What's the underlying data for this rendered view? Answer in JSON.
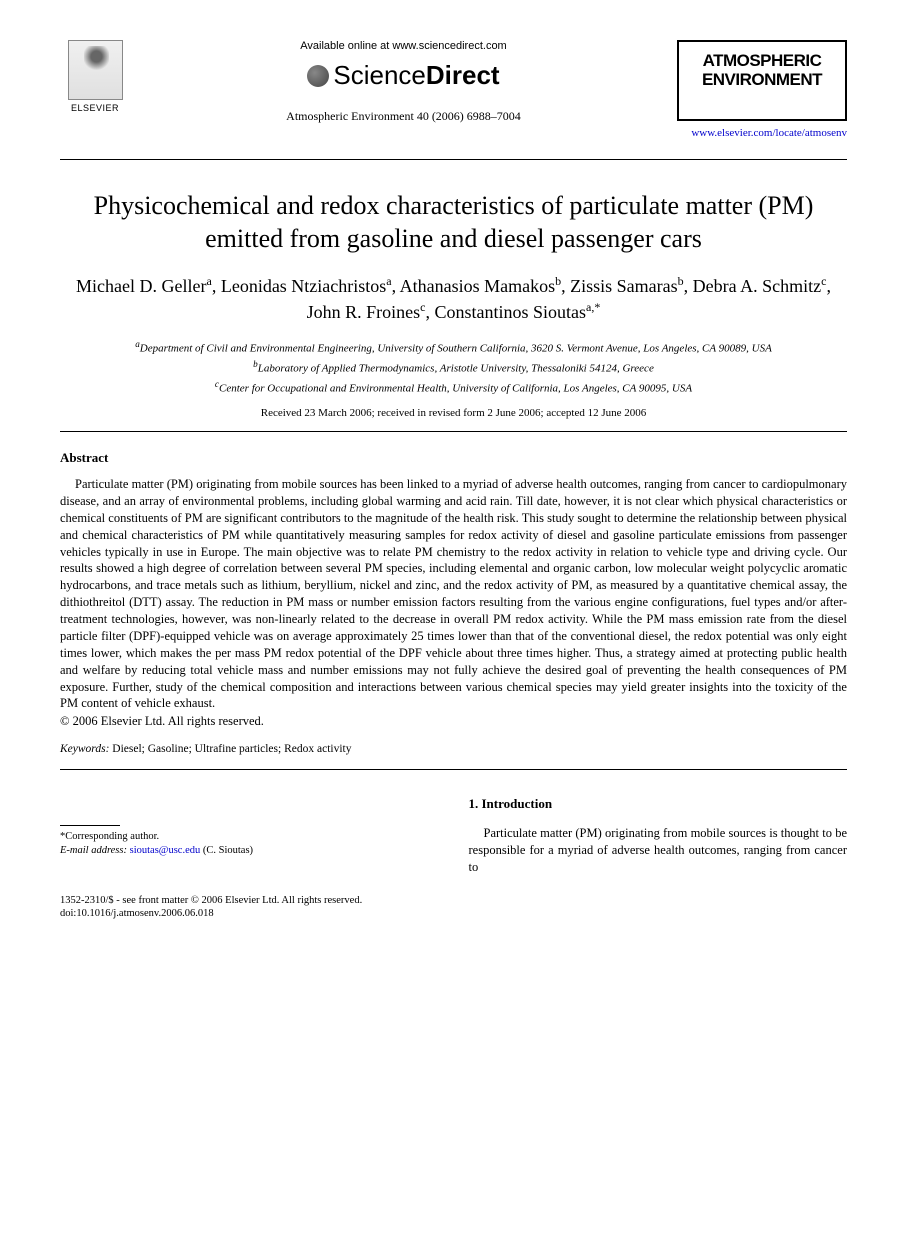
{
  "header": {
    "publisher_name": "ELSEVIER",
    "available_text": "Available online at www.sciencedirect.com",
    "platform_prefix": "Science",
    "platform_suffix": "Direct",
    "journal_reference": "Atmospheric Environment 40 (2006) 6988–7004",
    "journal_box_line1": "ATMOSPHERIC",
    "journal_box_line2": "ENVIRONMENT",
    "journal_url": "www.elsevier.com/locate/atmosenv"
  },
  "article": {
    "title": "Physicochemical and redox characteristics of particulate matter (PM) emitted from gasoline and diesel passenger cars",
    "authors_html": "Michael D. Geller<sup>a</sup>, Leonidas Ntziachristos<sup>a</sup>, Athanasios Mamakos<sup>b</sup>, Zissis Samaras<sup>b</sup>, Debra A. Schmitz<sup>c</sup>, John R. Froines<sup>c</sup>, Constantinos Sioutas<sup>a,*</sup>",
    "affiliations": [
      "<sup>a</sup>Department of Civil and Environmental Engineering, University of Southern California, 3620 S. Vermont Avenue, Los Angeles, CA 90089, USA",
      "<sup>b</sup>Laboratory of Applied Thermodynamics, Aristotle University, Thessaloniki 54124, Greece",
      "<sup>c</sup>Center for Occupational and Environmental Health, University of California, Los Angeles, CA 90095, USA"
    ],
    "dates": "Received 23 March 2006; received in revised form 2 June 2006; accepted 12 June 2006"
  },
  "abstract": {
    "heading": "Abstract",
    "body": "Particulate matter (PM) originating from mobile sources has been linked to a myriad of adverse health outcomes, ranging from cancer to cardiopulmonary disease, and an array of environmental problems, including global warming and acid rain. Till date, however, it is not clear which physical characteristics or chemical constituents of PM are significant contributors to the magnitude of the health risk. This study sought to determine the relationship between physical and chemical characteristics of PM while quantitatively measuring samples for redox activity of diesel and gasoline particulate emissions from passenger vehicles typically in use in Europe. The main objective was to relate PM chemistry to the redox activity in relation to vehicle type and driving cycle. Our results showed a high degree of correlation between several PM species, including elemental and organic carbon, low molecular weight polycyclic aromatic hydrocarbons, and trace metals such as lithium, beryllium, nickel and zinc, and the redox activity of PM, as measured by a quantitative chemical assay, the dithiothreitol (DTT) assay. The reduction in PM mass or number emission factors resulting from the various engine configurations, fuel types and/or after-treatment technologies, however, was non-linearly related to the decrease in overall PM redox activity. While the PM mass emission rate from the diesel particle filter (DPF)-equipped vehicle was on average approximately 25 times lower than that of the conventional diesel, the redox potential was only eight times lower, which makes the per mass PM redox potential of the DPF vehicle about three times higher. Thus, a strategy aimed at protecting public health and welfare by reducing total vehicle mass and number emissions may not fully achieve the desired goal of preventing the health consequences of PM exposure. Further, study of the chemical composition and interactions between various chemical species may yield greater insights into the toxicity of the PM content of vehicle exhaust.",
    "copyright": "© 2006 Elsevier Ltd. All rights reserved."
  },
  "keywords": {
    "label": "Keywords:",
    "text": "Diesel; Gasoline; Ultrafine particles; Redox activity"
  },
  "introduction": {
    "heading": "1. Introduction",
    "text": "Particulate matter (PM) originating from mobile sources is thought to be responsible for a myriad of adverse health outcomes, ranging from cancer to"
  },
  "footnote": {
    "corresponding": "*Corresponding author.",
    "email_label": "E-mail address:",
    "email": "sioutas@usc.edu",
    "email_author": "(C. Sioutas)"
  },
  "footer": {
    "issn_line": "1352-2310/$ - see front matter © 2006 Elsevier Ltd. All rights reserved.",
    "doi_line": "doi:10.1016/j.atmosenv.2006.06.018"
  }
}
